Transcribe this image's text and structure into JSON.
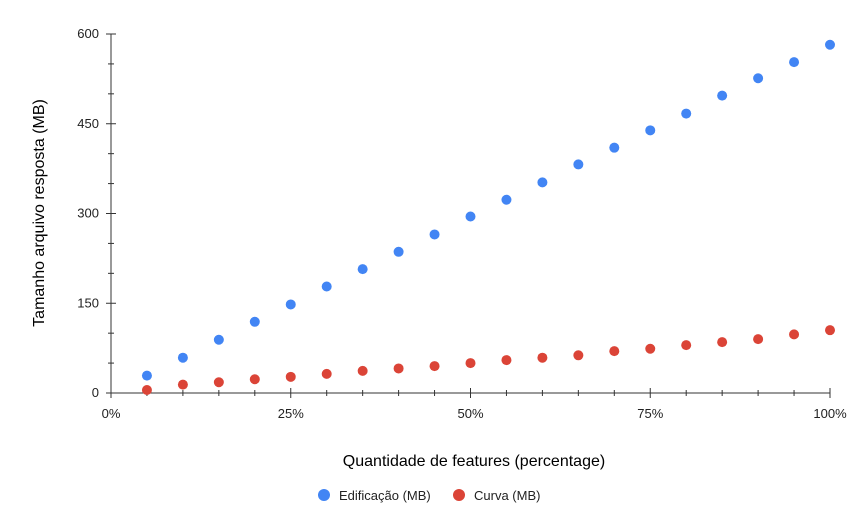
{
  "chart_data": {
    "type": "scatter",
    "xlabel": "Quantidade de features (percentage)",
    "ylabel": "Tamanho arquivo resposta (MB)",
    "xlim": [
      0,
      100
    ],
    "ylim": [
      0,
      600
    ],
    "x_ticks": [
      0,
      25,
      50,
      75,
      100
    ],
    "x_tick_labels": [
      "0%",
      "25%",
      "50%",
      "75%",
      "100%"
    ],
    "y_ticks": [
      0,
      150,
      300,
      450,
      600
    ],
    "y_tick_labels": [
      "0",
      "150",
      "300",
      "450",
      "600"
    ],
    "grid": false,
    "legend_position": "bottom",
    "series": [
      {
        "name": "Edificação (MB)",
        "color": "#4285f4",
        "x": [
          5,
          10,
          15,
          20,
          25,
          30,
          35,
          40,
          45,
          50,
          55,
          60,
          65,
          70,
          75,
          80,
          85,
          90,
          95,
          100
        ],
        "values": [
          29,
          59,
          89,
          119,
          148,
          178,
          207,
          236,
          265,
          295,
          323,
          352,
          382,
          410,
          439,
          467,
          497,
          526,
          553,
          582
        ]
      },
      {
        "name": "Curva (MB)",
        "color": "#db4437",
        "x": [
          5,
          10,
          15,
          20,
          25,
          30,
          35,
          40,
          45,
          50,
          55,
          60,
          65,
          70,
          75,
          80,
          85,
          90,
          95,
          100
        ],
        "values": [
          5,
          14,
          18,
          23,
          27,
          32,
          37,
          41,
          45,
          50,
          55,
          59,
          63,
          70,
          74,
          80,
          85,
          90,
          98,
          105
        ]
      }
    ]
  }
}
